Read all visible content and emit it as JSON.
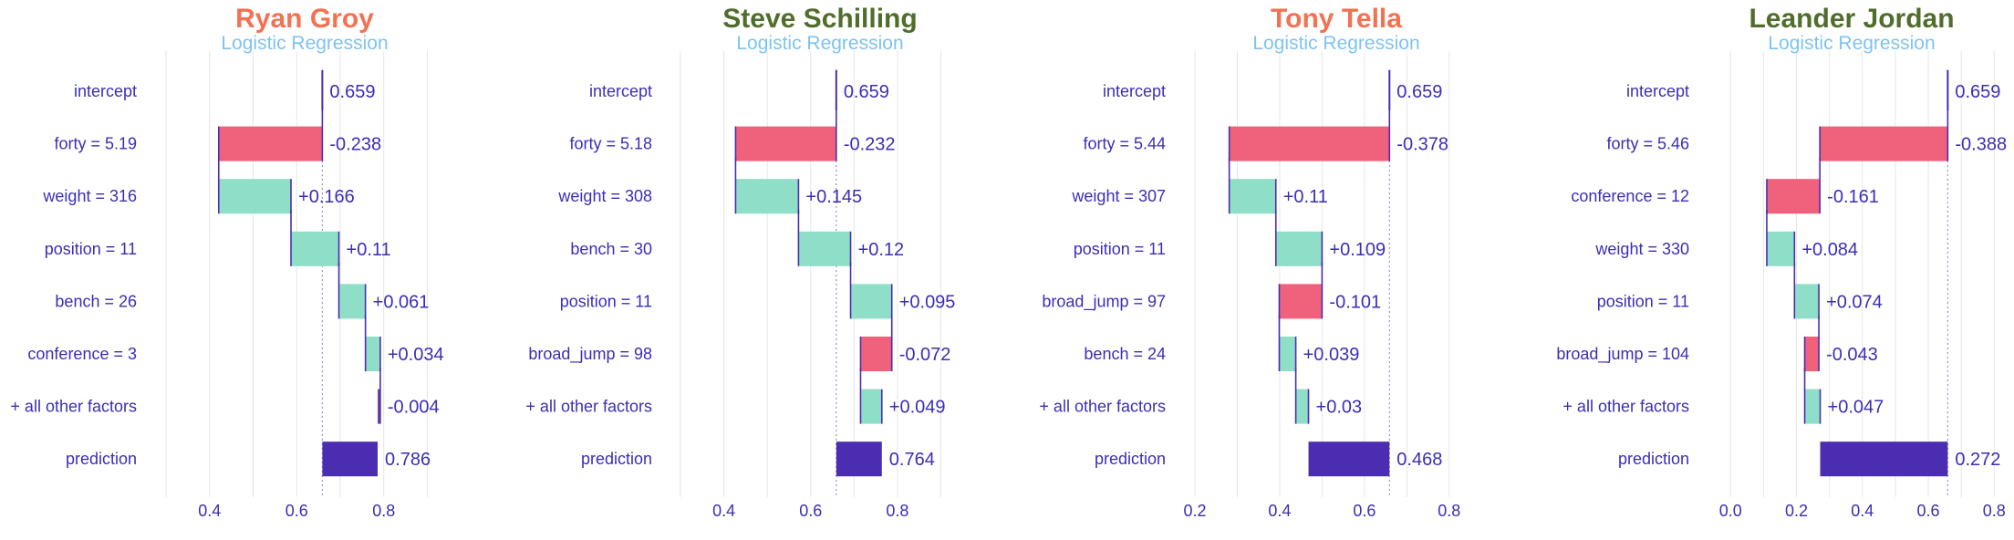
{
  "colors": {
    "positive": "#8fdec7",
    "negative": "#f0627b",
    "prediction": "#4a2db0",
    "text": "#3b2eb5",
    "subtitle": "#7ec3ef",
    "grid": "#e6e6e6",
    "title_red": "#f47152",
    "title_green": "#4f6d2b"
  },
  "chart_data": [
    {
      "type": "waterfall",
      "title": "Ryan Groy",
      "title_color": "#f47152",
      "subtitle": "Logistic Regression",
      "intercept": 0.659,
      "prediction": 0.786,
      "rows": [
        {
          "label": "intercept",
          "value": 0.659,
          "text": "0.659",
          "kind": "intercept"
        },
        {
          "label": "forty = 5.19",
          "value": -0.238,
          "text": "-0.238",
          "kind": "contribution"
        },
        {
          "label": "weight = 316",
          "value": 0.166,
          "text": "+0.166",
          "kind": "contribution"
        },
        {
          "label": "position = 11",
          "value": 0.11,
          "text": "+0.11",
          "kind": "contribution"
        },
        {
          "label": "bench = 26",
          "value": 0.061,
          "text": "+0.061",
          "kind": "contribution"
        },
        {
          "label": "conference = 3",
          "value": 0.034,
          "text": "+0.034",
          "kind": "contribution"
        },
        {
          "label": "+ all other factors",
          "value": -0.004,
          "text": "-0.004",
          "kind": "contribution"
        },
        {
          "label": "prediction",
          "value": 0.786,
          "text": "0.786",
          "kind": "prediction"
        }
      ],
      "xlim": [
        0.3,
        0.92
      ],
      "xticks": [
        0.4,
        0.6,
        0.8
      ],
      "xtick_labels": [
        "0.4",
        "0.6",
        "0.8"
      ]
    },
    {
      "type": "waterfall",
      "title": "Steve Schilling",
      "title_color": "#4f6d2b",
      "subtitle": "Logistic Regression",
      "intercept": 0.659,
      "prediction": 0.764,
      "rows": [
        {
          "label": "intercept",
          "value": 0.659,
          "text": "0.659",
          "kind": "intercept"
        },
        {
          "label": "forty = 5.18",
          "value": -0.232,
          "text": "-0.232",
          "kind": "contribution"
        },
        {
          "label": "weight = 308",
          "value": 0.145,
          "text": "+0.145",
          "kind": "contribution"
        },
        {
          "label": "bench = 30",
          "value": 0.12,
          "text": "+0.12",
          "kind": "contribution"
        },
        {
          "label": "position = 11",
          "value": 0.095,
          "text": "+0.095",
          "kind": "contribution"
        },
        {
          "label": "broad_jump = 98",
          "value": -0.072,
          "text": "-0.072",
          "kind": "contribution"
        },
        {
          "label": "+ all other factors",
          "value": 0.049,
          "text": "+0.049",
          "kind": "contribution"
        },
        {
          "label": "prediction",
          "value": 0.764,
          "text": "0.764",
          "kind": "prediction"
        }
      ],
      "xlim": [
        0.3,
        0.92
      ],
      "xticks": [
        0.4,
        0.6,
        0.8
      ],
      "xtick_labels": [
        "0.4",
        "0.6",
        "0.8"
      ]
    },
    {
      "type": "waterfall",
      "title": "Tony Tella",
      "title_color": "#f47152",
      "subtitle": "Logistic Regression",
      "intercept": 0.659,
      "prediction": 0.468,
      "rows": [
        {
          "label": "intercept",
          "value": 0.659,
          "text": "0.659",
          "kind": "intercept"
        },
        {
          "label": "forty = 5.44",
          "value": -0.378,
          "text": "-0.378",
          "kind": "contribution"
        },
        {
          "label": "weight = 307",
          "value": 0.11,
          "text": "+0.11",
          "kind": "contribution"
        },
        {
          "label": "position = 11",
          "value": 0.109,
          "text": "+0.109",
          "kind": "contribution"
        },
        {
          "label": "broad_jump = 97",
          "value": -0.101,
          "text": "-0.101",
          "kind": "contribution"
        },
        {
          "label": "bench = 24",
          "value": 0.039,
          "text": "+0.039",
          "kind": "contribution"
        },
        {
          "label": "+ all other factors",
          "value": 0.03,
          "text": "+0.03",
          "kind": "contribution"
        },
        {
          "label": "prediction",
          "value": 0.468,
          "text": "0.468",
          "kind": "prediction"
        }
      ],
      "xlim": [
        0.2,
        0.88
      ],
      "xticks": [
        0.2,
        0.4,
        0.6,
        0.8
      ],
      "xtick_labels": [
        "0.2",
        "0.4",
        "0.6",
        "0.8"
      ]
    },
    {
      "type": "waterfall",
      "title": "Leander Jordan",
      "title_color": "#4f6d2b",
      "subtitle": "Logistic Regression",
      "intercept": 0.659,
      "prediction": 0.272,
      "rows": [
        {
          "label": "intercept",
          "value": 0.659,
          "text": "0.659",
          "kind": "intercept"
        },
        {
          "label": "forty = 5.46",
          "value": -0.388,
          "text": "-0.388",
          "kind": "contribution"
        },
        {
          "label": "conference = 12",
          "value": -0.161,
          "text": "-0.161",
          "kind": "contribution"
        },
        {
          "label": "weight = 330",
          "value": 0.084,
          "text": "+0.084",
          "kind": "contribution"
        },
        {
          "label": "position = 11",
          "value": 0.074,
          "text": "+0.074",
          "kind": "contribution"
        },
        {
          "label": "broad_jump = 104",
          "value": -0.043,
          "text": "-0.043",
          "kind": "contribution"
        },
        {
          "label": "+ all other factors",
          "value": 0.047,
          "text": "+0.047",
          "kind": "contribution"
        },
        {
          "label": "prediction",
          "value": 0.272,
          "text": "0.272",
          "kind": "prediction"
        }
      ],
      "xlim": [
        -0.02,
        0.86
      ],
      "xticks": [
        0.0,
        0.2,
        0.4,
        0.6,
        0.8
      ],
      "xtick_labels": [
        "0.0",
        "0.2",
        "0.4",
        "0.6",
        "0.8"
      ]
    }
  ]
}
